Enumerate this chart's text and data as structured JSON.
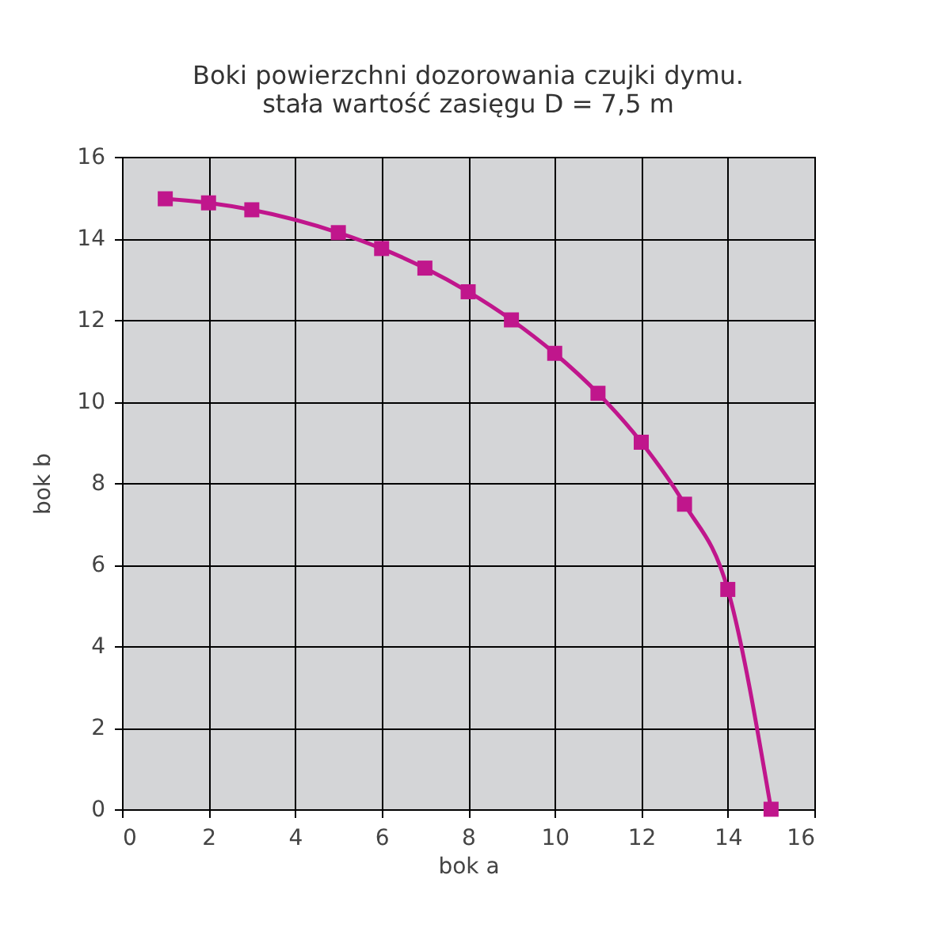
{
  "chart_data": {
    "type": "line",
    "title": [
      "Boki powierzchni dozorowania czujki dymu.",
      "stała wartość zasięgu D = 7,5 m"
    ],
    "xlabel": "bok a",
    "ylabel": "bok b",
    "x": [
      1,
      2,
      3,
      5,
      6,
      7,
      8,
      9,
      10,
      11,
      12,
      13,
      14,
      15
    ],
    "series": [
      {
        "color": "#c0168c",
        "values": [
          14.97,
          14.87,
          14.7,
          14.14,
          13.75,
          13.27,
          12.69,
          12.0,
          11.18,
          10.2,
          9.0,
          7.48,
          5.39,
          0
        ]
      }
    ],
    "xlim": [
      0,
      16
    ],
    "xticks": [
      0,
      2,
      4,
      6,
      8,
      10,
      12,
      14,
      16
    ],
    "ylim": [
      0,
      16
    ],
    "yticks": [
      0,
      2,
      4,
      6,
      8,
      10,
      12,
      14,
      16
    ],
    "grid": true,
    "marker": "square",
    "line_style": "solid"
  }
}
